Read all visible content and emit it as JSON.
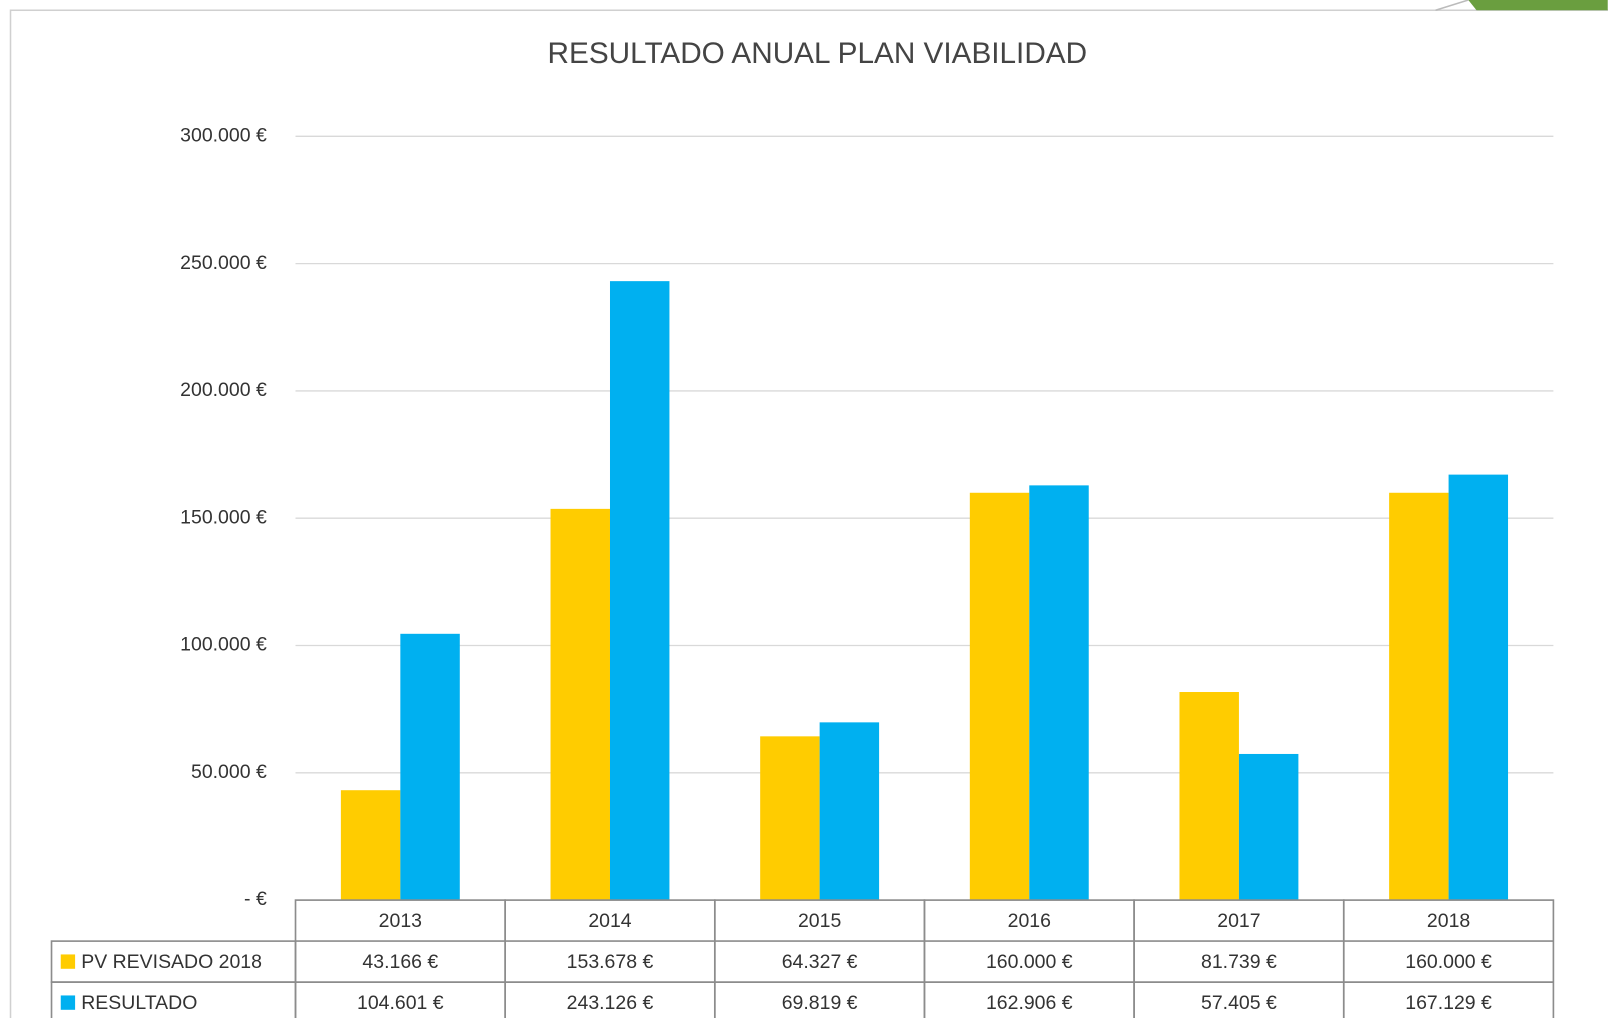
{
  "chart_data": {
    "type": "bar",
    "title": "RESULTADO ANUAL PLAN VIABILIDAD",
    "categories": [
      "2013",
      "2014",
      "2015",
      "2016",
      "2017",
      "2018"
    ],
    "series": [
      {
        "name": "PV REVISADO 2018",
        "color": "#ffcc00",
        "values": [
          43166,
          153678,
          64327,
          160000,
          81739,
          160000
        ],
        "value_labels": [
          "43.166 €",
          "153.678 €",
          "64.327 €",
          "160.000 €",
          "81.739 €",
          "160.000 €"
        ]
      },
      {
        "name": "RESULTADO",
        "color": "#00b0f0",
        "values": [
          104601,
          243126,
          69819,
          162906,
          57405,
          167129
        ],
        "value_labels": [
          "104.601 €",
          "243.126 €",
          "69.819 €",
          "162.906 €",
          "57.405 €",
          "167.129 €"
        ]
      }
    ],
    "ylim": [
      0,
      300000
    ],
    "yticks": [
      {
        "value": 0,
        "label": "-   €"
      },
      {
        "value": 50000,
        "label": "50.000 €"
      },
      {
        "value": 100000,
        "label": "100.000 €"
      },
      {
        "value": 150000,
        "label": "150.000 €"
      },
      {
        "value": 200000,
        "label": "200.000 €"
      },
      {
        "value": 250000,
        "label": "250.000 €"
      },
      {
        "value": 300000,
        "label": "300.000 €"
      }
    ],
    "grid": true
  }
}
